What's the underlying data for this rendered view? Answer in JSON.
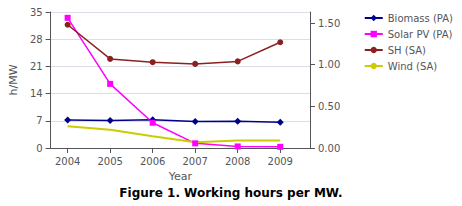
{
  "chart_data": {
    "type": "line",
    "title": "Figure 1. Working hours per MW.",
    "x_label": "Year",
    "y_label": "h/MW",
    "x": [
      2004,
      2005,
      2006,
      2007,
      2008,
      2009
    ],
    "xlim": [
      2003.6,
      2009.7
    ],
    "xticks": [
      2004,
      2005,
      2006,
      2007,
      2008,
      2009
    ],
    "ylim": [
      0,
      35
    ],
    "yticks": [
      0,
      7,
      14,
      21,
      28,
      35
    ],
    "y2lim": [
      0,
      1.633
    ],
    "y2ticks": [
      {
        "value": 0,
        "label": "0.00"
      },
      {
        "value": 0.5,
        "label": "0.50"
      },
      {
        "value": 1,
        "label": "1.00"
      },
      {
        "value": 1.5,
        "label": "1.50"
      }
    ],
    "grid": true,
    "legend": "right",
    "series": [
      {
        "name": "Biomass (PA)",
        "color": "#00008B",
        "marker": "diamond",
        "values": [
          7.2,
          7.1,
          7.3,
          6.8,
          6.9,
          6.6
        ]
      },
      {
        "name": "Solar PV (PA)",
        "color": "#FF00FF",
        "marker": "square",
        "values": [
          33.5,
          16.5,
          6.5,
          1.2,
          0.4,
          0.3
        ]
      },
      {
        "name": "SH (SA)",
        "color": "#8B2020",
        "marker": "circle",
        "axis": "y2",
        "values": [
          1.48,
          1.07,
          1.03,
          1.01,
          1.04,
          1.27
        ]
      },
      {
        "name": "Wind (SA)",
        "color": "#CCCC00",
        "marker": "none",
        "axis": "y2",
        "values": [
          0.26,
          0.22,
          0.14,
          0.07,
          0.09,
          0.09
        ]
      }
    ]
  }
}
